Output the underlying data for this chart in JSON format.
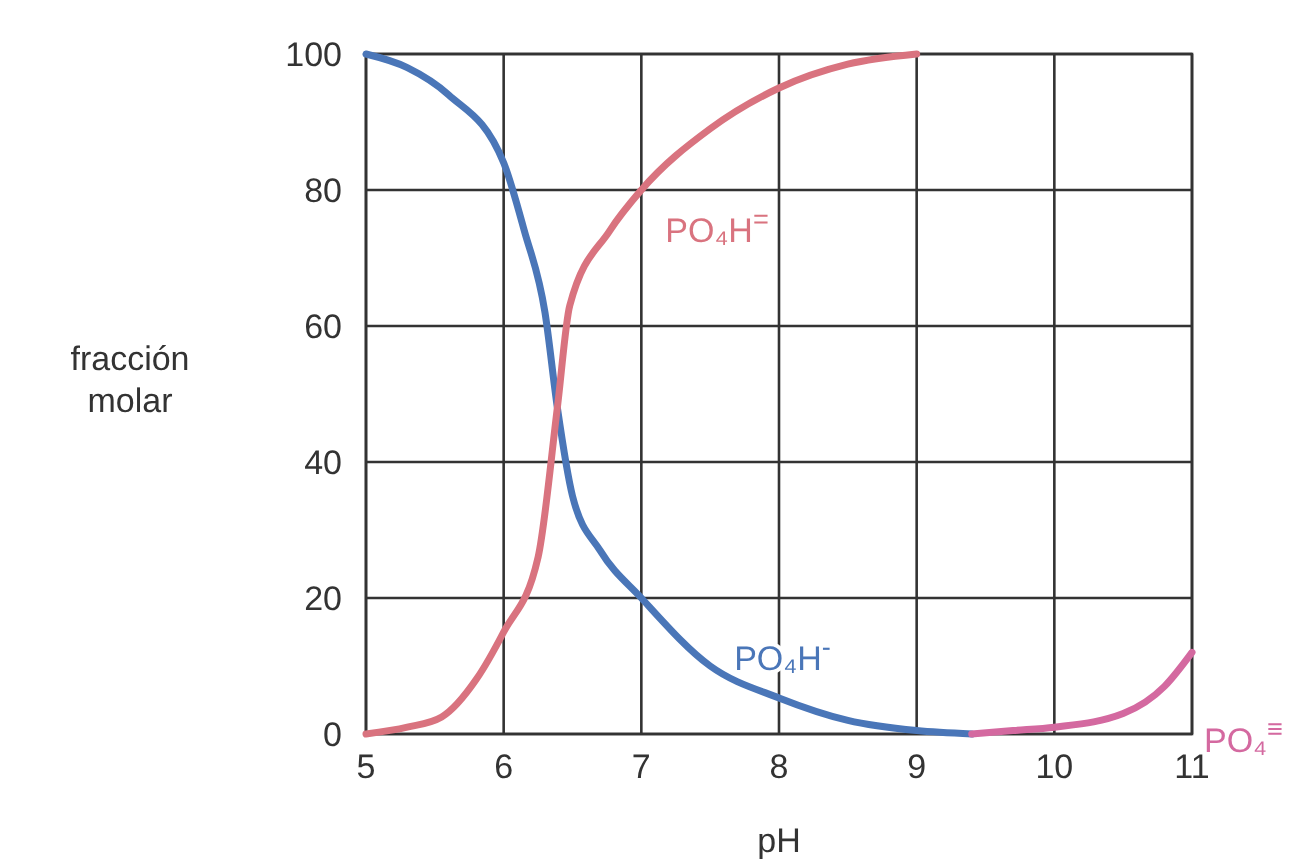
{
  "chart_data": {
    "type": "line",
    "xlabel": "pH",
    "ylabel": "fracción molar",
    "xlim": [
      5,
      11
    ],
    "ylim": [
      0,
      100
    ],
    "xticks": [
      5,
      6,
      7,
      8,
      9,
      10,
      11
    ],
    "yticks": [
      0,
      20,
      40,
      60,
      80,
      100
    ],
    "grid": true,
    "marker": "none",
    "line_style": "solid",
    "series": [
      {
        "name": "PO₄H$^{-}$",
        "color": "#4a76b8",
        "x": [
          5,
          5.3,
          5.6,
          6,
          6.15,
          6.3,
          6.39,
          6.5,
          6.7,
          7,
          7.5,
          8,
          8.5,
          9,
          9.4
        ],
        "values": [
          100,
          98,
          94,
          84,
          74,
          62,
          48,
          35,
          27,
          20,
          10,
          5.3,
          2,
          0.5,
          0
        ]
      },
      {
        "name": "PO₄H$^{=}$",
        "color": "#d9737f",
        "x": [
          5,
          5.3,
          5.55,
          5.8,
          6,
          6.25,
          6.39,
          6.48,
          6.77,
          7,
          7.5,
          8,
          8.5,
          9
        ],
        "values": [
          0,
          1,
          2.5,
          8,
          15,
          26,
          48,
          63,
          74,
          80,
          89,
          95,
          98.5,
          100
        ]
      },
      {
        "name": "PO₄$^{≡}$",
        "color": "#d469a0",
        "x": [
          9.4,
          9.7,
          10,
          10.5,
          10.8,
          11
        ],
        "values": [
          0,
          0.5,
          1,
          3,
          7,
          12
        ]
      }
    ]
  }
}
